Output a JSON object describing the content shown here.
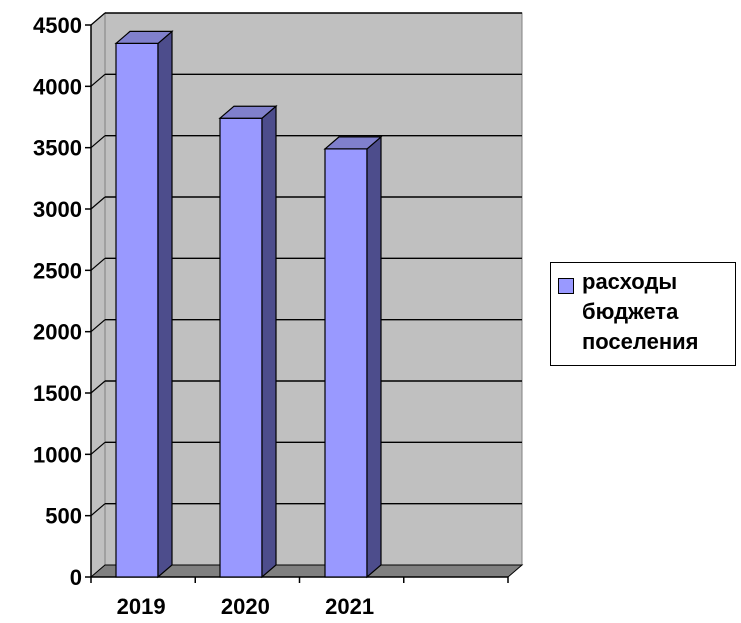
{
  "chart_data": {
    "type": "bar",
    "categories": [
      "2019",
      "2020",
      "2021",
      ""
    ],
    "series": [
      {
        "name": "расходы бюджета поселения",
        "values": [
          4350,
          3740,
          3490,
          null
        ]
      }
    ],
    "ylim": [
      0,
      4500
    ],
    "yticks": [
      "0",
      "500",
      "1000",
      "1500",
      "2000",
      "2500",
      "3000",
      "3500",
      "4000",
      "4500"
    ],
    "grid": true,
    "legend_position": "right",
    "colors": {
      "bar_front": "#9999ff",
      "bar_side": "#4d4d8c",
      "bar_top": "#8080cc",
      "wall": "#c0c0c0",
      "floor": "#808080",
      "gridline": "#000000"
    }
  },
  "legend": {
    "label": "расходы бюджета поселения"
  }
}
